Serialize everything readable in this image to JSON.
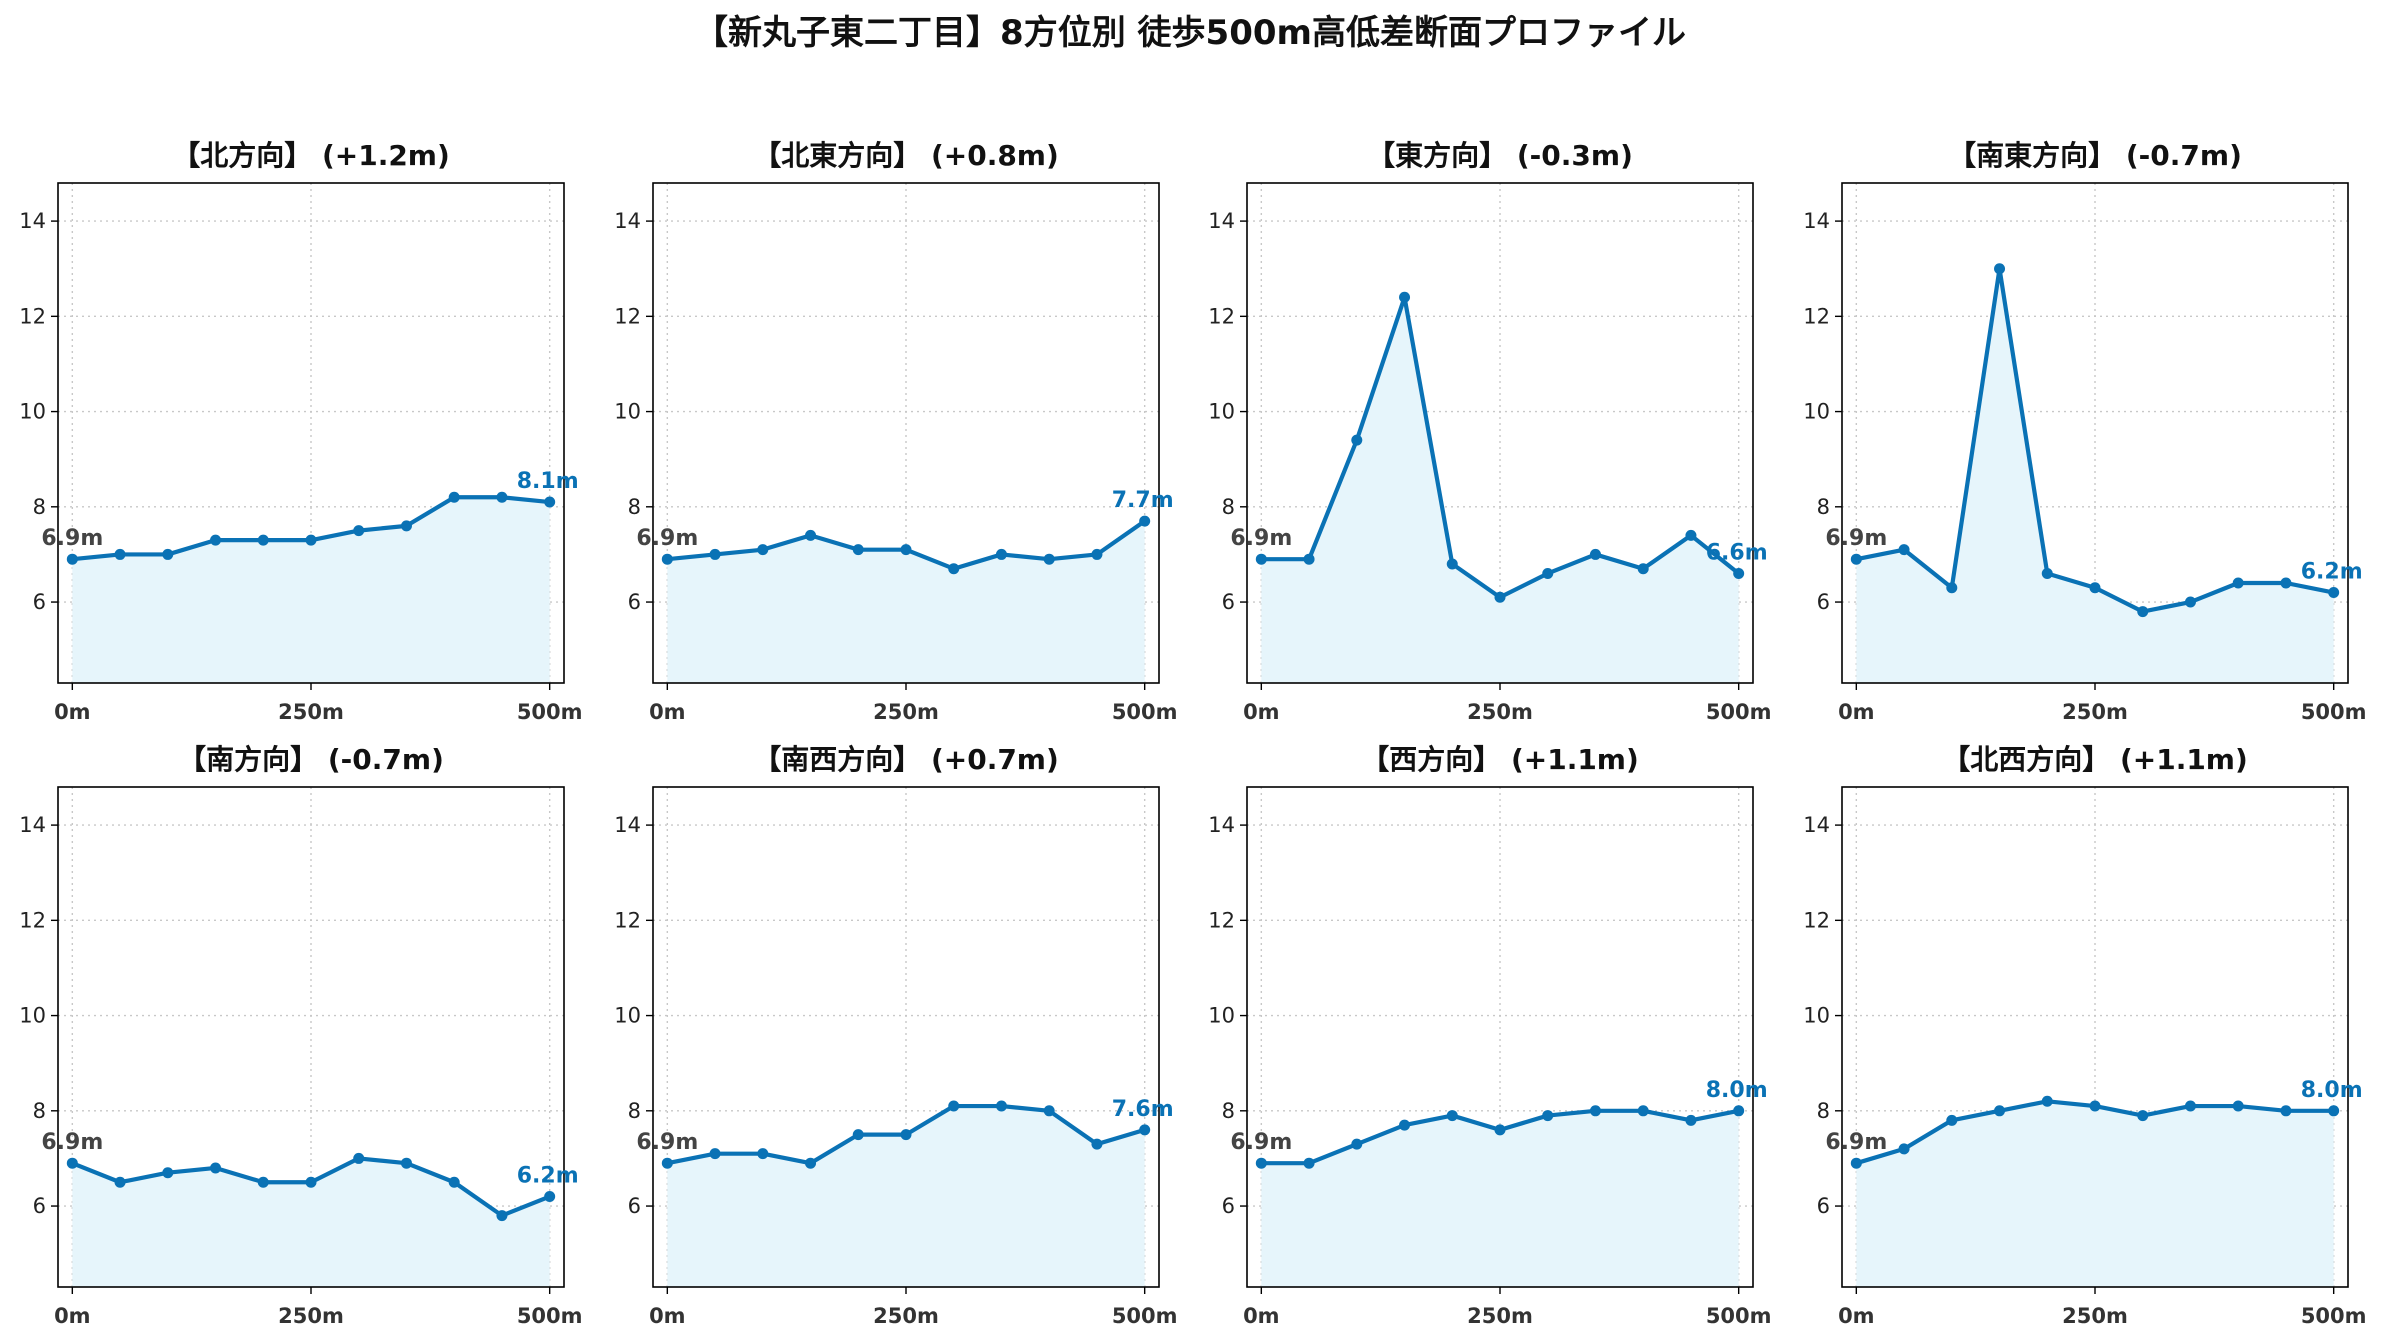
{
  "title": "【新丸子東二丁目】8方位別 徒歩500m高低差断面プロファイル",
  "colors": {
    "line": "#0a72b5",
    "fill": "#e6f5fb",
    "start_label": "#444444",
    "end_label": "#0a72b5",
    "grid": "#c8c8c8"
  },
  "chart_data": [
    {
      "type": "line",
      "title": "【北方向】 (+1.2m)",
      "x": [
        0,
        50,
        100,
        150,
        200,
        250,
        300,
        350,
        400,
        450,
        500
      ],
      "y": [
        6.9,
        7.0,
        7.0,
        7.3,
        7.3,
        7.3,
        7.5,
        7.6,
        8.2,
        8.2,
        8.1
      ],
      "xticks": [
        "0m",
        "250m",
        "500m"
      ],
      "yticks": [
        6,
        8,
        10,
        12,
        14
      ],
      "xlim": [
        -15,
        515
      ],
      "ylim": [
        4.3,
        14.8
      ],
      "start_label": "6.9m",
      "end_label": "8.1m",
      "grid": true,
      "area_fill": true
    },
    {
      "type": "line",
      "title": "【北東方向】 (+0.8m)",
      "x": [
        0,
        50,
        100,
        150,
        200,
        250,
        300,
        350,
        400,
        450,
        500
      ],
      "y": [
        6.9,
        7.0,
        7.1,
        7.4,
        7.1,
        7.1,
        6.7,
        7.0,
        6.9,
        7.0,
        7.7
      ],
      "xticks": [
        "0m",
        "250m",
        "500m"
      ],
      "yticks": [
        6,
        8,
        10,
        12,
        14
      ],
      "xlim": [
        -15,
        515
      ],
      "ylim": [
        4.3,
        14.8
      ],
      "start_label": "6.9m",
      "end_label": "7.7m",
      "grid": true,
      "area_fill": true
    },
    {
      "type": "line",
      "title": "【東方向】 (-0.3m)",
      "x": [
        0,
        50,
        100,
        150,
        200,
        250,
        300,
        350,
        400,
        450,
        500
      ],
      "y": [
        6.9,
        6.9,
        9.4,
        12.4,
        6.8,
        6.1,
        6.6,
        7.0,
        6.7,
        7.4,
        6.6
      ],
      "xticks": [
        "0m",
        "250m",
        "500m"
      ],
      "yticks": [
        6,
        8,
        10,
        12,
        14
      ],
      "xlim": [
        -15,
        515
      ],
      "ylim": [
        4.3,
        14.8
      ],
      "start_label": "6.9m",
      "end_label": "6.6m",
      "grid": true,
      "area_fill": true
    },
    {
      "type": "line",
      "title": "【南東方向】 (-0.7m)",
      "x": [
        0,
        50,
        100,
        150,
        200,
        250,
        300,
        350,
        400,
        450,
        500
      ],
      "y": [
        6.9,
        7.1,
        6.3,
        13.0,
        6.6,
        6.3,
        5.8,
        6.0,
        6.4,
        6.4,
        6.2
      ],
      "xticks": [
        "0m",
        "250m",
        "500m"
      ],
      "yticks": [
        6,
        8,
        10,
        12,
        14
      ],
      "xlim": [
        -15,
        515
      ],
      "ylim": [
        4.3,
        14.8
      ],
      "start_label": "6.9m",
      "end_label": "6.2m",
      "grid": true,
      "area_fill": true
    },
    {
      "type": "line",
      "title": "【南方向】 (-0.7m)",
      "x": [
        0,
        50,
        100,
        150,
        200,
        250,
        300,
        350,
        400,
        450,
        500
      ],
      "y": [
        6.9,
        6.5,
        6.7,
        6.8,
        6.5,
        6.5,
        7.0,
        6.9,
        6.5,
        5.8,
        6.2
      ],
      "xticks": [
        "0m",
        "250m",
        "500m"
      ],
      "yticks": [
        6,
        8,
        10,
        12,
        14
      ],
      "xlim": [
        -15,
        515
      ],
      "ylim": [
        4.3,
        14.8
      ],
      "start_label": "6.9m",
      "end_label": "6.2m",
      "grid": true,
      "area_fill": true
    },
    {
      "type": "line",
      "title": "【南西方向】 (+0.7m)",
      "x": [
        0,
        50,
        100,
        150,
        200,
        250,
        300,
        350,
        400,
        450,
        500
      ],
      "y": [
        6.9,
        7.1,
        7.1,
        6.9,
        7.5,
        7.5,
        8.1,
        8.1,
        8.0,
        7.3,
        7.6
      ],
      "xticks": [
        "0m",
        "250m",
        "500m"
      ],
      "yticks": [
        6,
        8,
        10,
        12,
        14
      ],
      "xlim": [
        -15,
        515
      ],
      "ylim": [
        4.3,
        14.8
      ],
      "start_label": "6.9m",
      "end_label": "7.6m",
      "grid": true,
      "area_fill": true
    },
    {
      "type": "line",
      "title": "【西方向】 (+1.1m)",
      "x": [
        0,
        50,
        100,
        150,
        200,
        250,
        300,
        350,
        400,
        450,
        500
      ],
      "y": [
        6.9,
        6.9,
        7.3,
        7.7,
        7.9,
        7.6,
        7.9,
        8.0,
        8.0,
        7.8,
        8.0
      ],
      "xticks": [
        "0m",
        "250m",
        "500m"
      ],
      "yticks": [
        6,
        8,
        10,
        12,
        14
      ],
      "xlim": [
        -15,
        515
      ],
      "ylim": [
        4.3,
        14.8
      ],
      "start_label": "6.9m",
      "end_label": "8.0m",
      "grid": true,
      "area_fill": true
    },
    {
      "type": "line",
      "title": "【北西方向】 (+1.1m)",
      "x": [
        0,
        50,
        100,
        150,
        200,
        250,
        300,
        350,
        400,
        450,
        500
      ],
      "y": [
        6.9,
        7.2,
        7.8,
        8.0,
        8.2,
        8.1,
        7.9,
        8.1,
        8.1,
        8.0,
        8.0
      ],
      "xticks": [
        "0m",
        "250m",
        "500m"
      ],
      "yticks": [
        6,
        8,
        10,
        12,
        14
      ],
      "xlim": [
        -15,
        515
      ],
      "ylim": [
        4.3,
        14.8
      ],
      "start_label": "6.9m",
      "end_label": "8.0m",
      "grid": true,
      "area_fill": true
    }
  ]
}
